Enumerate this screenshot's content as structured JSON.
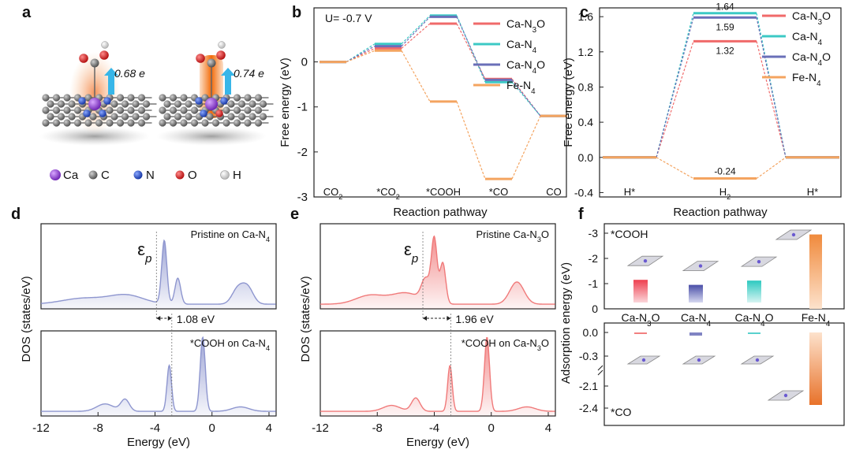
{
  "panel_labels": {
    "a": "a",
    "b": "b",
    "c": "c",
    "d": "d",
    "e": "e",
    "f": "f"
  },
  "colors": {
    "cn3o": "#f06a6a",
    "cn4": "#3cc9c5",
    "cn4o": "#6a6fb8",
    "fen4": "#f4a460",
    "dos_blue": "#8e96cf",
    "dos_red": "#f07a7a",
    "fen4_bar": "#f08a3c"
  },
  "panel_a": {
    "charge_left": "0.68 e",
    "charge_right": "0.74 e",
    "legend": [
      {
        "label": "Ca",
        "color": "#8b3fd0"
      },
      {
        "label": "C",
        "color": "#707070"
      },
      {
        "label": "N",
        "color": "#2040c0"
      },
      {
        "label": "O",
        "color": "#d02020"
      },
      {
        "label": "H",
        "color": "#e8e8e8"
      }
    ]
  },
  "chart_data": [
    {
      "id": "b",
      "type": "line",
      "annotation": "U= -0.7 V",
      "ylabel": "Free energy (eV)",
      "xlabel": "Reaction pathway",
      "categories": [
        "CO₂",
        "*CO₂",
        "*COOH",
        "*CO",
        "CO"
      ],
      "ylim": [
        -3,
        1.2
      ],
      "yticks": [
        0,
        -1,
        -2,
        -3
      ],
      "series": [
        {
          "name": "Ca-N₃O",
          "values": [
            0,
            0.3,
            0.85,
            -0.38,
            -1.2
          ]
        },
        {
          "name": "Ca-N₄",
          "values": [
            0,
            0.4,
            1.03,
            -0.45,
            -1.2
          ]
        },
        {
          "name": "Ca-N₄O",
          "values": [
            0,
            0.35,
            1.0,
            -0.4,
            -1.2
          ]
        },
        {
          "name": "Fe-N₄",
          "values": [
            0,
            0.25,
            -0.88,
            -2.6,
            -1.2
          ]
        }
      ]
    },
    {
      "id": "c",
      "type": "line",
      "ylabel": "Free energy (eV)",
      "xlabel": "Reaction pathway",
      "categories": [
        "H*",
        "H₂",
        "H*"
      ],
      "ylim": [
        -0.45,
        1.7
      ],
      "yticks": [
        1.6,
        1.2,
        0.8,
        0.4,
        0.0,
        -0.4
      ],
      "ytick_labels": [
        "1.6",
        "1.2",
        "0.8",
        "0.4",
        "0.0",
        "-0.4"
      ],
      "series": [
        {
          "name": "Ca-N₃O",
          "values": [
            0,
            1.32,
            0
          ]
        },
        {
          "name": "Ca-N₄",
          "values": [
            0,
            1.64,
            0
          ]
        },
        {
          "name": "Ca-N₄O",
          "values": [
            0,
            1.59,
            0
          ]
        },
        {
          "name": "Fe-N₄",
          "values": [
            0,
            -0.24,
            0
          ]
        }
      ],
      "value_labels": [
        {
          "text": "1.64",
          "value": 1.64
        },
        {
          "text": "1.59",
          "value": 1.59
        },
        {
          "text": "1.32",
          "value": 1.32
        },
        {
          "text": "-0.24",
          "value": -0.24
        }
      ]
    },
    {
      "id": "d",
      "type": "area",
      "ylabel": "DOS (states/eV)",
      "xlabel": "Energy (eV)",
      "xlim": [
        -12,
        4.5
      ],
      "xticks": [
        -12,
        -8,
        -4,
        0,
        4
      ],
      "top_label": "Pristine on Ca-N₄",
      "bottom_label": "*COOH on Ca-N₄",
      "eps_label": "ε",
      "eps_sub": "p",
      "eps_top": -3.9,
      "eps_bottom": -2.82,
      "shift_label": "1.08 eV",
      "top_peaks": [
        [
          -3.35,
          0.85,
          0.18
        ],
        [
          -2.4,
          0.35,
          0.2
        ],
        [
          1.8,
          0.2,
          0.4
        ],
        [
          2.5,
          0.22,
          0.4
        ],
        [
          -6,
          0.12,
          1.2
        ],
        [
          -9,
          0.08,
          1.5
        ]
      ],
      "bottom_peaks": [
        [
          -3.0,
          0.62,
          0.16
        ],
        [
          -0.65,
          1.0,
          0.18
        ],
        [
          -6.1,
          0.16,
          0.3
        ],
        [
          -7.5,
          0.1,
          0.6
        ],
        [
          2.0,
          0.06,
          0.6
        ]
      ]
    },
    {
      "id": "e",
      "type": "area",
      "ylabel": "DOS (states/eV)",
      "xlabel": "Energy (eV)",
      "xlim": [
        -12,
        4.5
      ],
      "xticks": [
        -12,
        -8,
        -4,
        0,
        4
      ],
      "top_label": "Pristine Ca-N₃O",
      "bottom_label": "*COOH on Ca-N₃O",
      "eps_label": "ε",
      "eps_sub": "p",
      "eps_top": -4.8,
      "eps_bottom": -2.84,
      "shift_label": "1.96 eV",
      "top_peaks": [
        [
          -4.0,
          0.85,
          0.2
        ],
        [
          -3.4,
          0.55,
          0.2
        ],
        [
          -4.6,
          0.3,
          0.3
        ],
        [
          -8.5,
          0.12,
          1.0
        ],
        [
          1.8,
          0.3,
          0.5
        ],
        [
          -6,
          0.15,
          1.0
        ]
      ],
      "bottom_peaks": [
        [
          -2.9,
          0.62,
          0.16
        ],
        [
          -0.3,
          1.0,
          0.18
        ],
        [
          -5.3,
          0.18,
          0.3
        ],
        [
          -7,
          0.08,
          0.6
        ],
        [
          2.5,
          0.06,
          0.6
        ]
      ]
    },
    {
      "id": "f",
      "type": "bar",
      "ylabel": "Adsorption energy (eV)",
      "categories": [
        "Ca-N₃O",
        "Ca-N₄",
        "Ca-N₄O",
        "Fe-N₄"
      ],
      "top_label": "*COOH",
      "bottom_label": "*CO",
      "cooh_values": [
        -1.15,
        -0.95,
        -1.12,
        -2.95
      ],
      "co_values": [
        -0.05,
        -0.1,
        -0.02,
        -2.32
      ],
      "top_yticks": [
        -3,
        -2,
        -1,
        0
      ],
      "top_ytick_labels": [
        "-3",
        "-2",
        "-1",
        "0"
      ],
      "bottom_yticks": [
        "0.0",
        "-0.3",
        "-2.1",
        "-2.4"
      ]
    }
  ]
}
